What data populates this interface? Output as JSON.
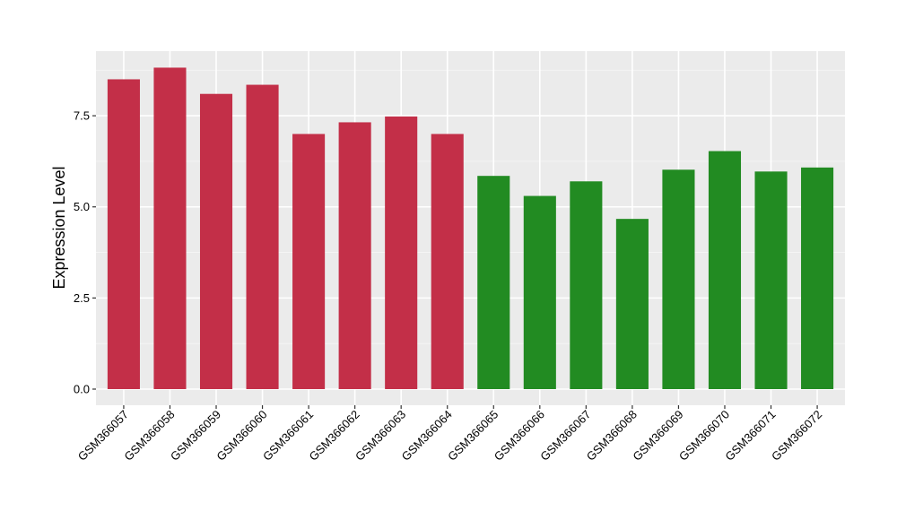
{
  "chart_data": {
    "type": "bar",
    "xlabel": "",
    "ylabel": "Expression Level",
    "ylim": [
      0,
      9.2
    ],
    "yticks": [
      0,
      2.5,
      5,
      7.5
    ],
    "ytick_labels": [
      "0.0",
      "2.5",
      "5.0",
      "7.5"
    ],
    "grid": true,
    "legend": "none",
    "categories": [
      "GSM366057",
      "GSM366058",
      "GSM366059",
      "GSM366060",
      "GSM366061",
      "GSM366062",
      "GSM366063",
      "GSM366064",
      "GSM366065",
      "GSM366066",
      "GSM366067",
      "GSM366068",
      "GSM366069",
      "GSM366070",
      "GSM366071",
      "GSM366072"
    ],
    "values": [
      8.5,
      8.82,
      8.1,
      8.35,
      7.0,
      7.32,
      7.48,
      7.0,
      5.85,
      5.3,
      5.7,
      4.67,
      6.02,
      6.53,
      5.97,
      6.08
    ],
    "group_sizes": [
      8,
      8
    ],
    "colors": {
      "group_1": "#c32f48",
      "group_2": "#228b22",
      "panel_background": "#ebebeb",
      "grid_major": "#ffffff",
      "grid_minor": "#f5f5f5"
    }
  }
}
